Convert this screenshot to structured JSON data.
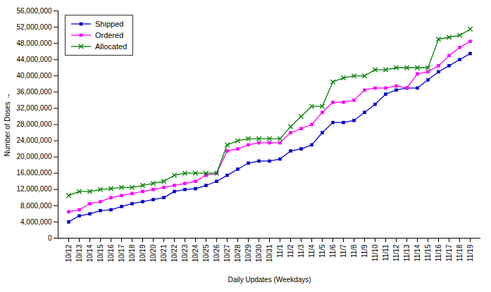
{
  "chart_data": {
    "type": "line",
    "xlabel": "Daily Updates (Weekdays)",
    "ylabel": "Number of Doses",
    "categories": [
      "10/12",
      "10/13",
      "10/14",
      "10/15",
      "10/16",
      "10/17",
      "10/18",
      "10/19",
      "10/20",
      "10/21",
      "10/22",
      "10/23",
      "10/24",
      "10/25",
      "10/26",
      "10/27",
      "10/28",
      "10/29",
      "10/30",
      "10/31",
      "11/1",
      "11/2",
      "11/3",
      "11/4",
      "11/5",
      "11/6",
      "11/7",
      "11/8",
      "11/9",
      "11/10",
      "11/11",
      "11/12",
      "11/13",
      "11/14",
      "11/15",
      "11/16",
      "11/17",
      "11/18",
      "11/19"
    ],
    "series": [
      {
        "name": "Shipped",
        "color": "#0000CD",
        "marker": "square",
        "values": [
          4000000,
          5500000,
          6000000,
          6800000,
          7000000,
          7800000,
          8500000,
          9000000,
          9500000,
          10000000,
          11500000,
          12000000,
          12200000,
          13000000,
          14000000,
          15500000,
          17000000,
          18500000,
          19000000,
          19000000,
          19500000,
          21500000,
          22000000,
          23000000,
          26000000,
          28500000,
          28500000,
          29000000,
          31000000,
          33000000,
          35500000,
          36500000,
          37000000,
          37000000,
          39000000,
          41000000,
          42500000,
          44000000,
          45500000
        ]
      },
      {
        "name": "Ordered",
        "color": "#FF00FF",
        "marker": "square",
        "values": [
          6500000,
          7000000,
          8500000,
          9000000,
          10000000,
          10500000,
          11000000,
          11500000,
          12000000,
          12500000,
          13000000,
          13500000,
          14000000,
          15500000,
          16000000,
          21500000,
          22000000,
          23000000,
          23500000,
          23500000,
          23500000,
          26000000,
          27000000,
          28000000,
          31000000,
          33500000,
          33500000,
          34000000,
          36500000,
          37000000,
          37000000,
          37500000,
          37000000,
          40500000,
          41000000,
          42500000,
          45000000,
          47000000,
          48500000
        ]
      },
      {
        "name": "Allocated",
        "color": "#008000",
        "marker": "x",
        "values": [
          10500000,
          11500000,
          11500000,
          12000000,
          12200000,
          12500000,
          12500000,
          13000000,
          13500000,
          14000000,
          15500000,
          16000000,
          16000000,
          16000000,
          16000000,
          23000000,
          24000000,
          24500000,
          24500000,
          24500000,
          24500000,
          27500000,
          30000000,
          32500000,
          32500000,
          38500000,
          39500000,
          40000000,
          40000000,
          41500000,
          41500000,
          42000000,
          42000000,
          42000000,
          42000000,
          49000000,
          49500000,
          50000000,
          51500000
        ]
      }
    ],
    "ylim": [
      0,
      56000000
    ],
    "yticks": [
      0,
      {
        "value": 4000000,
        "label": "4,000,000"
      },
      {
        "value": 8000000,
        "label": "8,000,000"
      },
      {
        "value": 12000000,
        "label": "12,000,000"
      },
      {
        "value": 16000000,
        "label": "16,000,000"
      },
      {
        "value": 20000000,
        "label": "20,000,000"
      },
      {
        "value": 24000000,
        "label": "24,000,000"
      },
      {
        "value": 28000000,
        "label": "28,000,000"
      },
      {
        "value": 32000000,
        "label": "32,000,000"
      },
      {
        "value": 36000000,
        "label": "36,000,000"
      },
      {
        "value": 40000000,
        "label": "40,000,000"
      },
      {
        "value": 44000000,
        "label": "44,000,000"
      },
      {
        "value": 48000000,
        "label": "48,000,000"
      },
      {
        "value": 52000000,
        "label": "52,000,000"
      },
      {
        "value": 56000000,
        "label": "56,000,000"
      }
    ],
    "legend": "upper left",
    "grid": false
  }
}
